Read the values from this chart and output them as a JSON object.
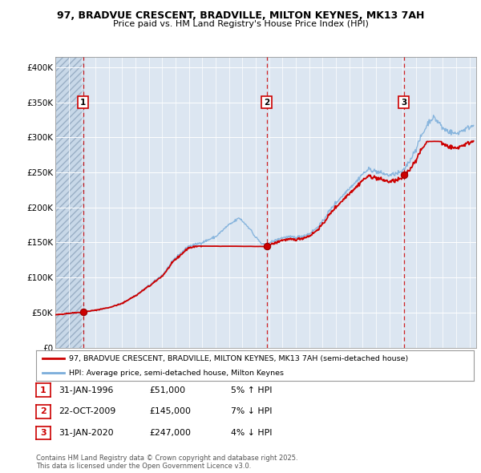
{
  "title_line1": "97, BRADVUE CRESCENT, BRADVILLE, MILTON KEYNES, MK13 7AH",
  "title_line2": "Price paid vs. HM Land Registry's House Price Index (HPI)",
  "legend_red": "97, BRADVUE CRESCENT, BRADVILLE, MILTON KEYNES, MK13 7AH (semi-detached house)",
  "legend_blue": "HPI: Average price, semi-detached house, Milton Keynes",
  "sale_points": [
    {
      "date_num": 1996.08,
      "price": 51000,
      "label": "1"
    },
    {
      "date_num": 2009.81,
      "price": 145000,
      "label": "2"
    },
    {
      "date_num": 2020.08,
      "price": 247000,
      "label": "3"
    }
  ],
  "vline_dates": [
    1996.08,
    2009.81,
    2020.08
  ],
  "table_rows": [
    {
      "num": "1",
      "date": "31-JAN-1996",
      "price": "£51,000",
      "hpi": "5% ↑ HPI"
    },
    {
      "num": "2",
      "date": "22-OCT-2009",
      "price": "£145,000",
      "hpi": "7% ↓ HPI"
    },
    {
      "num": "3",
      "date": "31-JAN-2020",
      "price": "£247,000",
      "hpi": "4% ↓ HPI"
    }
  ],
  "footnote": "Contains HM Land Registry data © Crown copyright and database right 2025.\nThis data is licensed under the Open Government Licence v3.0.",
  "ylim": [
    0,
    410000
  ],
  "yticks": [
    0,
    50000,
    100000,
    150000,
    200000,
    250000,
    300000,
    350000,
    400000
  ],
  "ytick_labels": [
    "£0",
    "£50K",
    "£100K",
    "£150K",
    "£200K",
    "£250K",
    "£300K",
    "£350K",
    "£400K"
  ],
  "xlim_start": 1994.0,
  "xlim_end": 2025.5,
  "background_color": "#dce6f1",
  "grid_color": "#ffffff",
  "hatch_color": "#b8c8dc",
  "red_color": "#cc0000",
  "blue_color": "#7aadda"
}
